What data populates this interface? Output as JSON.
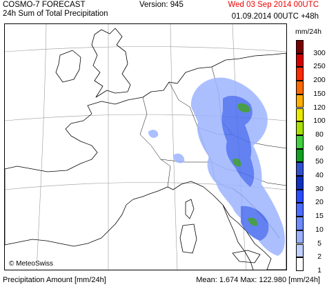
{
  "header": {
    "title_line1": "COSMO-7 FORECAST",
    "title_line2": "24h Sum of Total Precipitation",
    "version": "Version: 945",
    "valid_time": "Wed 03 Sep 2014 00UTC",
    "run_info": "01.09.2014 00UTC +48h"
  },
  "map": {
    "credit": "© MeteoSwiss",
    "ocean_color": "#ffffff",
    "coast_color": "#000000",
    "precip_light": "#9db5ff",
    "precip_mid": "#4a6cf0",
    "precip_heavy": "#2a8f2a"
  },
  "legend": {
    "unit": "mm/24h",
    "levels": [
      {
        "label": "300",
        "color": "#7a0000"
      },
      {
        "label": "250",
        "color": "#d40000"
      },
      {
        "label": "200",
        "color": "#ff2a00"
      },
      {
        "label": "150",
        "color": "#ff6a00"
      },
      {
        "label": "120",
        "color": "#ffb000"
      },
      {
        "label": "100",
        "color": "#e8e800"
      },
      {
        "label": "80",
        "color": "#a8e000"
      },
      {
        "label": "60",
        "color": "#40d040"
      },
      {
        "label": "50",
        "color": "#10a020"
      },
      {
        "label": "40",
        "color": "#3050d0"
      },
      {
        "label": "30",
        "color": "#1030c0"
      },
      {
        "label": "20",
        "color": "#2a4aff"
      },
      {
        "label": "15",
        "color": "#4a6cff"
      },
      {
        "label": "10",
        "color": "#6c8cff"
      },
      {
        "label": "5",
        "color": "#9ab0ff"
      },
      {
        "label": "2",
        "color": "#c0d0ff"
      },
      {
        "label": "1",
        "color": "#ffffff"
      }
    ]
  },
  "footer": {
    "left": "Precipitation Amount [mm/24h]",
    "right": "Mean:   1.674 Max: 122.980 [mm/24h]"
  }
}
